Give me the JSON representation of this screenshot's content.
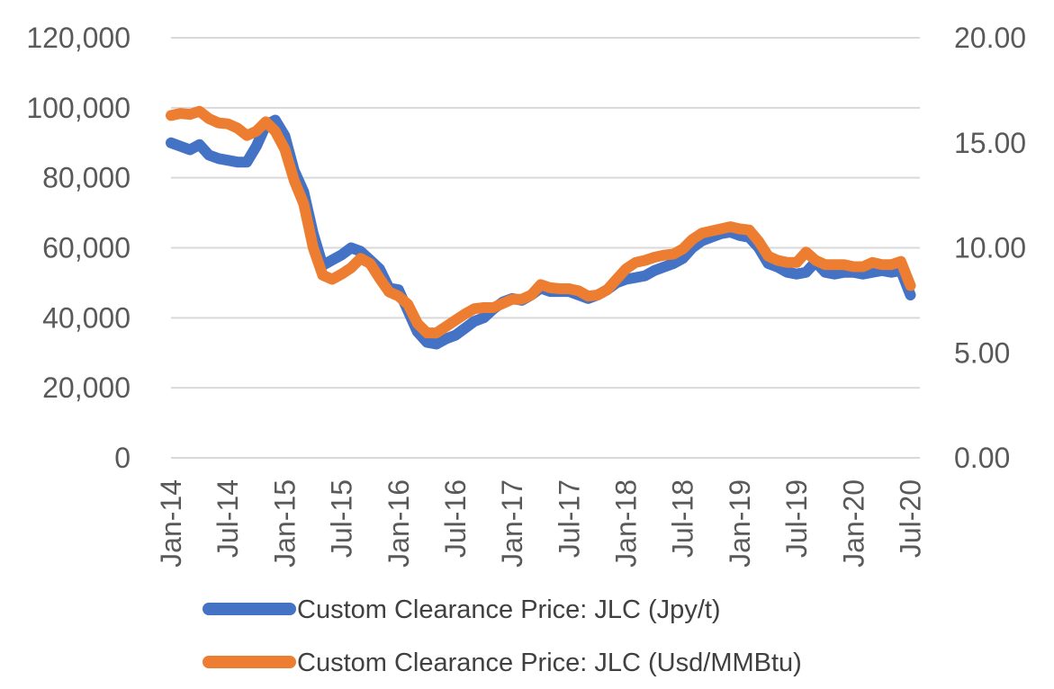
{
  "chart_data": {
    "type": "line",
    "title": "",
    "xlabel": "",
    "ylabel": "",
    "y_left_range": [
      0,
      120000
    ],
    "y_left_ticks": [
      "0",
      "20,000",
      "40,000",
      "60,000",
      "80,000",
      "100,000",
      "120,000"
    ],
    "y_right_range": [
      0,
      20
    ],
    "y_right_ticks": [
      "0.00",
      "5.00",
      "10.00",
      "15.00",
      "20.00"
    ],
    "x_range": [
      "2014-01",
      "2020-08"
    ],
    "x_tick_labels": [
      "Jan-14",
      "Jul-14",
      "Jan-15",
      "Jul-15",
      "Jan-16",
      "Jul-16",
      "Jan-17",
      "Jul-17",
      "Jan-18",
      "Jul-18",
      "Jan-19",
      "Jul-19",
      "Jan-20",
      "Jul-20"
    ],
    "grid": "horizontal",
    "legend_position": "bottom",
    "series": [
      {
        "name": "Custom Clearance Price: JLC (Jpy/t)",
        "axis": "left",
        "color": "#4472C4",
        "points": [
          [
            "2014-01",
            90000
          ],
          [
            "2014-02",
            89000
          ],
          [
            "2014-03",
            88000
          ],
          [
            "2014-04",
            89500
          ],
          [
            "2014-05",
            86500
          ],
          [
            "2014-06",
            85500
          ],
          [
            "2014-07",
            85000
          ],
          [
            "2014-08",
            84500
          ],
          [
            "2014-09",
            84500
          ],
          [
            "2014-10",
            89000
          ],
          [
            "2014-11",
            95000
          ],
          [
            "2014-12",
            96500
          ],
          [
            "2015-01",
            92000
          ],
          [
            "2015-02",
            82000
          ],
          [
            "2015-03",
            76000
          ],
          [
            "2015-04",
            64000
          ],
          [
            "2015-05",
            55000
          ],
          [
            "2015-06",
            56500
          ],
          [
            "2015-07",
            58000
          ],
          [
            "2015-08",
            60000
          ],
          [
            "2015-09",
            59000
          ],
          [
            "2015-10",
            56500
          ],
          [
            "2015-11",
            54000
          ],
          [
            "2015-12",
            48500
          ],
          [
            "2016-01",
            48000
          ],
          [
            "2016-02",
            42000
          ],
          [
            "2016-03",
            36000
          ],
          [
            "2016-04",
            33000
          ],
          [
            "2016-05",
            32500
          ],
          [
            "2016-06",
            34000
          ],
          [
            "2016-07",
            35000
          ],
          [
            "2016-08",
            37000
          ],
          [
            "2016-09",
            39000
          ],
          [
            "2016-10",
            40000
          ],
          [
            "2016-11",
            42500
          ],
          [
            "2016-12",
            44500
          ],
          [
            "2017-01",
            45500
          ],
          [
            "2017-02",
            45000
          ],
          [
            "2017-03",
            46500
          ],
          [
            "2017-04",
            48500
          ],
          [
            "2017-05",
            47500
          ],
          [
            "2017-06",
            47500
          ],
          [
            "2017-07",
            47500
          ],
          [
            "2017-08",
            46500
          ],
          [
            "2017-09",
            45500
          ],
          [
            "2017-10",
            46500
          ],
          [
            "2017-11",
            48000
          ],
          [
            "2017-12",
            50000
          ],
          [
            "2018-01",
            51000
          ],
          [
            "2018-02",
            51500
          ],
          [
            "2018-03",
            52000
          ],
          [
            "2018-04",
            53500
          ],
          [
            "2018-05",
            54500
          ],
          [
            "2018-06",
            55500
          ],
          [
            "2018-07",
            57000
          ],
          [
            "2018-08",
            60000
          ],
          [
            "2018-09",
            62000
          ],
          [
            "2018-10",
            63000
          ],
          [
            "2018-11",
            64000
          ],
          [
            "2018-12",
            64500
          ],
          [
            "2019-01",
            63500
          ],
          [
            "2019-02",
            63000
          ],
          [
            "2019-03",
            60000
          ],
          [
            "2019-04",
            55500
          ],
          [
            "2019-05",
            54500
          ],
          [
            "2019-06",
            53000
          ],
          [
            "2019-07",
            52500
          ],
          [
            "2019-08",
            53000
          ],
          [
            "2019-09",
            56000
          ],
          [
            "2019-10",
            53000
          ],
          [
            "2019-11",
            52500
          ],
          [
            "2019-12",
            53000
          ],
          [
            "2020-01",
            53000
          ],
          [
            "2020-02",
            52500
          ],
          [
            "2020-03",
            53000
          ],
          [
            "2020-04",
            53500
          ],
          [
            "2020-05",
            53000
          ],
          [
            "2020-06",
            53500
          ],
          [
            "2020-07",
            46500
          ]
        ]
      },
      {
        "name": "Custom Clearance Price: JLC (Usd/MMBtu)",
        "axis": "right",
        "color": "#ED7D31",
        "points": [
          [
            "2014-01",
            16.3
          ],
          [
            "2014-02",
            16.4
          ],
          [
            "2014-03",
            16.35
          ],
          [
            "2014-04",
            16.5
          ],
          [
            "2014-05",
            16.15
          ],
          [
            "2014-06",
            15.95
          ],
          [
            "2014-07",
            15.9
          ],
          [
            "2014-08",
            15.7
          ],
          [
            "2014-09",
            15.35
          ],
          [
            "2014-10",
            15.55
          ],
          [
            "2014-11",
            16.0
          ],
          [
            "2014-12",
            15.55
          ],
          [
            "2015-01",
            14.7
          ],
          [
            "2015-02",
            13.2
          ],
          [
            "2015-03",
            12.1
          ],
          [
            "2015-04",
            10.0
          ],
          [
            "2015-05",
            8.7
          ],
          [
            "2015-06",
            8.5
          ],
          [
            "2015-07",
            8.75
          ],
          [
            "2015-08",
            9.05
          ],
          [
            "2015-09",
            9.5
          ],
          [
            "2015-10",
            9.25
          ],
          [
            "2015-11",
            8.55
          ],
          [
            "2015-12",
            7.9
          ],
          [
            "2016-01",
            7.7
          ],
          [
            "2016-02",
            7.3
          ],
          [
            "2016-03",
            6.4
          ],
          [
            "2016-04",
            5.95
          ],
          [
            "2016-05",
            5.95
          ],
          [
            "2016-06",
            6.25
          ],
          [
            "2016-07",
            6.55
          ],
          [
            "2016-08",
            6.85
          ],
          [
            "2016-09",
            7.1
          ],
          [
            "2016-10",
            7.15
          ],
          [
            "2016-11",
            7.15
          ],
          [
            "2016-12",
            7.35
          ],
          [
            "2017-01",
            7.55
          ],
          [
            "2017-02",
            7.55
          ],
          [
            "2017-03",
            7.75
          ],
          [
            "2017-04",
            8.25
          ],
          [
            "2017-05",
            8.1
          ],
          [
            "2017-06",
            8.05
          ],
          [
            "2017-07",
            8.05
          ],
          [
            "2017-08",
            7.95
          ],
          [
            "2017-09",
            7.7
          ],
          [
            "2017-10",
            7.75
          ],
          [
            "2017-11",
            8.0
          ],
          [
            "2017-12",
            8.5
          ],
          [
            "2018-01",
            9.0
          ],
          [
            "2018-02",
            9.3
          ],
          [
            "2018-03",
            9.4
          ],
          [
            "2018-04",
            9.55
          ],
          [
            "2018-05",
            9.65
          ],
          [
            "2018-06",
            9.7
          ],
          [
            "2018-07",
            9.95
          ],
          [
            "2018-08",
            10.4
          ],
          [
            "2018-09",
            10.7
          ],
          [
            "2018-10",
            10.8
          ],
          [
            "2018-11",
            10.9
          ],
          [
            "2018-12",
            11.0
          ],
          [
            "2019-01",
            10.9
          ],
          [
            "2019-02",
            10.85
          ],
          [
            "2019-03",
            10.3
          ],
          [
            "2019-04",
            9.6
          ],
          [
            "2019-05",
            9.4
          ],
          [
            "2019-06",
            9.3
          ],
          [
            "2019-07",
            9.3
          ],
          [
            "2019-08",
            9.8
          ],
          [
            "2019-09",
            9.4
          ],
          [
            "2019-10",
            9.2
          ],
          [
            "2019-11",
            9.2
          ],
          [
            "2019-12",
            9.2
          ],
          [
            "2020-01",
            9.1
          ],
          [
            "2020-02",
            9.1
          ],
          [
            "2020-03",
            9.3
          ],
          [
            "2020-04",
            9.2
          ],
          [
            "2020-05",
            9.2
          ],
          [
            "2020-06",
            9.35
          ],
          [
            "2020-07",
            8.2
          ]
        ]
      }
    ]
  }
}
